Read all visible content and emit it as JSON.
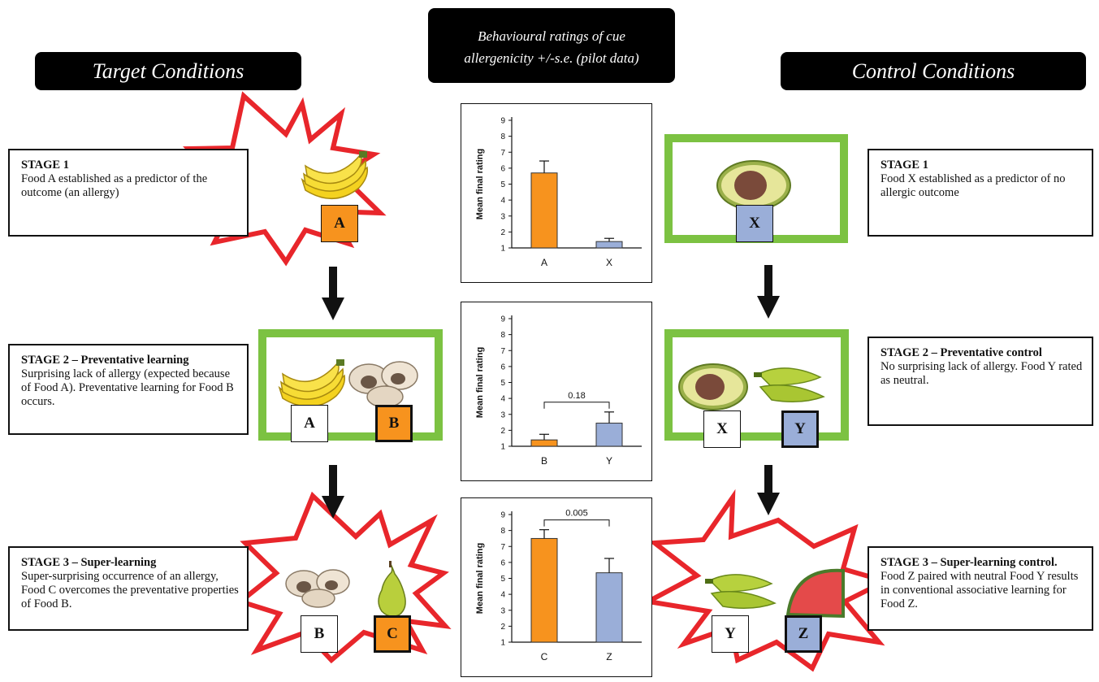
{
  "banners": {
    "target": "Target Conditions",
    "control": "Control Conditions",
    "center_line1": "Behavioural ratings of cue",
    "center_line2": "allergenicity +/-s.e. (pilot data)"
  },
  "stages": {
    "target_1": {
      "title": "STAGE 1",
      "desc": "Food A established as a predictor of the outcome (an allergy)"
    },
    "target_2": {
      "title": "STAGE 2 – Preventative learning",
      "desc": "Surprising lack of allergy (expected because of Food A). Preventative learning for Food B occurs."
    },
    "target_3": {
      "title": "STAGE 3 – Super-learning",
      "desc": "Super-surprising occurrence of an allergy, Food C overcomes the preventative properties of Food B."
    },
    "control_1": {
      "title": "STAGE 1",
      "desc": "Food X established as a predictor of no allergic outcome"
    },
    "control_2": {
      "title": "STAGE 2 – Preventative control",
      "desc": "No surprising lack of allergy. Food Y rated as neutral."
    },
    "control_3": {
      "title": "STAGE 3 – Super-learning control.",
      "desc": "Food Z paired with neutral Food Y results in conventional associative learning for Food Z."
    }
  },
  "labels": {
    "a1": "A",
    "x1": "X",
    "a2": "A",
    "b2": "B",
    "x2": "X",
    "y2": "Y",
    "b3": "B",
    "c3": "C",
    "y3": "Y",
    "z3": "Z"
  },
  "colors": {
    "target": "#f7931e",
    "control": "#9aaed8",
    "allergy_burst": "#e8262b",
    "no_allergy_frame": "#7cc242"
  },
  "icons": {
    "banana": "banana-icon",
    "avocado": "avocado-icon",
    "mushroom": "mushroom-icon",
    "pepper": "pepper-icon",
    "pear": "pear-icon",
    "watermelon": "watermelon-icon",
    "arrow": "arrow-down-icon"
  },
  "chart_data": [
    {
      "type": "bar",
      "ylabel": "Mean final rating",
      "categories": [
        "A",
        "X"
      ],
      "values": [
        5.7,
        1.4
      ],
      "errors": [
        0.75,
        0.2
      ],
      "colors": [
        "#f7931e",
        "#9aaed8"
      ],
      "ylim": [
        1,
        9
      ],
      "yticks": [
        "1",
        "2",
        "3",
        "4",
        "5",
        "6",
        "7",
        "8",
        "9"
      ],
      "annotation": ""
    },
    {
      "type": "bar",
      "ylabel": "Mean final rating",
      "categories": [
        "B",
        "Y"
      ],
      "values": [
        1.4,
        2.45
      ],
      "errors": [
        0.35,
        0.7
      ],
      "colors": [
        "#f7931e",
        "#9aaed8"
      ],
      "ylim": [
        1,
        9
      ],
      "yticks": [
        "1",
        "2",
        "3",
        "4",
        "5",
        "6",
        "7",
        "8",
        "9"
      ],
      "annotation": "0.18"
    },
    {
      "type": "bar",
      "ylabel": "Mean final rating",
      "categories": [
        "C",
        "Z"
      ],
      "values": [
        7.5,
        5.35
      ],
      "errors": [
        0.55,
        0.9
      ],
      "colors": [
        "#f7931e",
        "#9aaed8"
      ],
      "ylim": [
        1,
        9
      ],
      "yticks": [
        "1",
        "2",
        "3",
        "4",
        "5",
        "6",
        "7",
        "8",
        "9"
      ],
      "annotation": "0.005"
    }
  ]
}
